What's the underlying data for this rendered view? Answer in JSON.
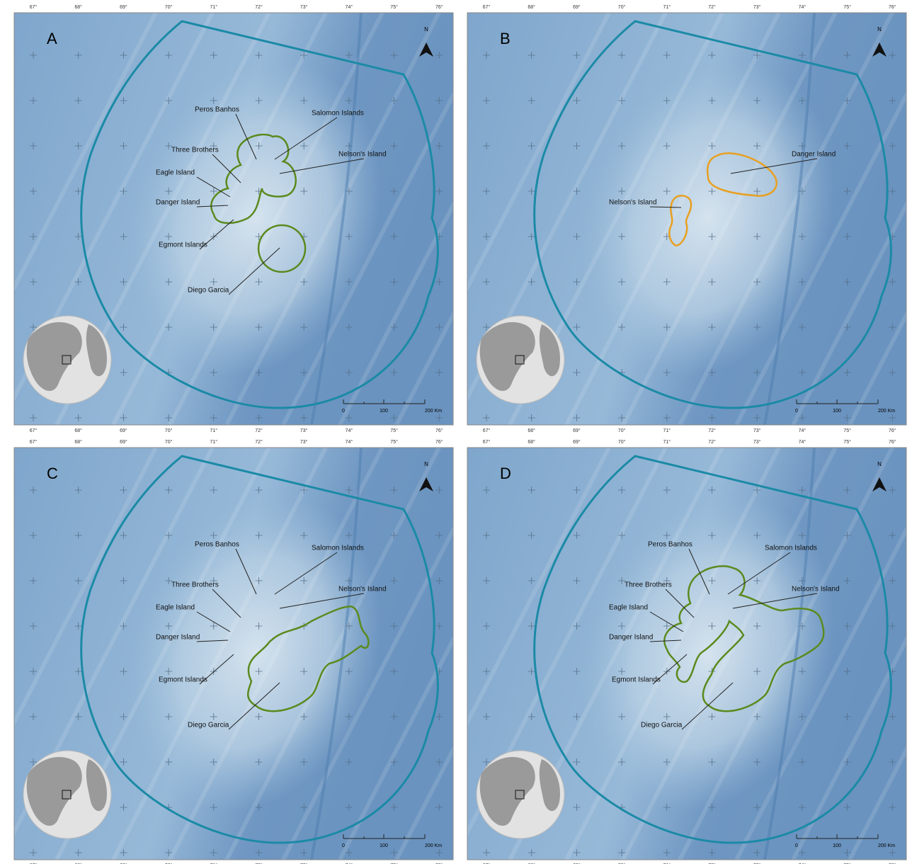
{
  "longitude_labels": [
    "67°",
    "68°",
    "69°",
    "70°",
    "71°",
    "72°",
    "73°",
    "74°",
    "75°",
    "76°"
  ],
  "north_label": "N",
  "scale_labels": [
    "0",
    "100",
    "200 Km"
  ],
  "panels": [
    {
      "letter": "A",
      "labels": [
        "Peros Banhos",
        "Salomon Islands",
        "Three Brothers",
        "Nelson's Island",
        "Eagle Island",
        "Danger Island",
        "Egmont Islands",
        "Diego Garcia"
      ]
    },
    {
      "letter": "B",
      "labels": [
        "Nelson's Island",
        "Danger Island"
      ]
    },
    {
      "letter": "C",
      "labels": [
        "Peros Banhos",
        "Salomon Islands",
        "Three Brothers",
        "Nelson's Island",
        "Eagle Island",
        "Danger Island",
        "Egmont Islands",
        "Diego Garcia"
      ]
    },
    {
      "letter": "D",
      "labels": [
        "Peros Banhos",
        "Salomon Islands",
        "Three Brothers",
        "Nelson's Island",
        "Eagle Island",
        "Danger Island",
        "Egmont Islands",
        "Diego Garcia"
      ]
    }
  ]
}
